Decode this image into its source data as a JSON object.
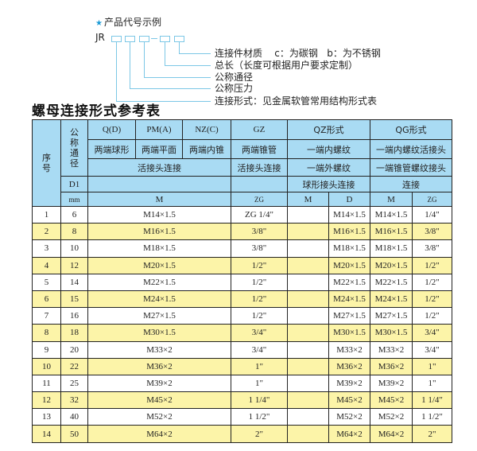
{
  "example": {
    "title": "产品代号示例",
    "star_icon": "star",
    "code_prefix": "JR",
    "dash": "-",
    "labels": [
      "连接件材质    c：为碳钢   b：为不锈钢",
      "总长（长度可根据用户要求定制）",
      "公称通径",
      "公称压力",
      "连接形式：见金属软管常用结构形式表"
    ]
  },
  "table_title": "螺母连接形式参考表",
  "colors": {
    "header_bg": "#a9dbf3",
    "stripe": "#fcf4a8",
    "accent": "#7cc7e6"
  },
  "header": {
    "seq": "序号",
    "dn": "公称通径",
    "qd": "Q(D)",
    "pm": "PM(A)",
    "nz": "NZ(C)",
    "gz": "GZ",
    "qz": "QZ形式",
    "qg": "QG形式",
    "qd_desc": "两端球形",
    "pm_desc": "两端平面",
    "nz_desc": "两端内锥",
    "gz_desc": "两端锥管",
    "qz_desc": "一端内螺纹",
    "qg_desc": "一端内螺纹活接头",
    "conn_a": "活接头连接",
    "conn_gz": "活接头连接",
    "qz_desc2": "一端外螺纹",
    "qg_desc2": "一端锥管螺纹接头",
    "d1": "D1",
    "qz_desc3": "球形接头连接",
    "qg_desc3": "连接",
    "mm": "mm",
    "m": "M",
    "zg": "ZG",
    "qz_m": "M",
    "qz_d": "D",
    "qg_m": "M",
    "qg_zg": "ZG"
  },
  "rows": [
    {
      "no": "1",
      "dn": "6",
      "m": "M14×1.5",
      "zg": "ZG 1/4\"",
      "qz_m": "",
      "qz_d": "M14×1.5",
      "qg_m": "M14×1.5",
      "qg_zg": "1/4\""
    },
    {
      "no": "2",
      "dn": "8",
      "m": "M16×1.5",
      "zg": "3/8\"",
      "qz_m": "",
      "qz_d": "M16×1.5",
      "qg_m": "M16×1.5",
      "qg_zg": "3/8\""
    },
    {
      "no": "3",
      "dn": "10",
      "m": "M18×1.5",
      "zg": "3/8\"",
      "qz_m": "",
      "qz_d": "M18×1.5",
      "qg_m": "M18×1.5",
      "qg_zg": "3/8\""
    },
    {
      "no": "4",
      "dn": "12",
      "m": "M20×1.5",
      "zg": "1/2\"",
      "qz_m": "",
      "qz_d": "M20×1.5",
      "qg_m": "M20×1.5",
      "qg_zg": "1/2\""
    },
    {
      "no": "5",
      "dn": "14",
      "m": "M22×1.5",
      "zg": "1/2\"",
      "qz_m": "",
      "qz_d": "M22×1.5",
      "qg_m": "M22×1.5",
      "qg_zg": "1/2\""
    },
    {
      "no": "6",
      "dn": "15",
      "m": "M24×1.5",
      "zg": "1/2\"",
      "qz_m": "",
      "qz_d": "M24×1.5",
      "qg_m": "M24×1.5",
      "qg_zg": "1/2\""
    },
    {
      "no": "7",
      "dn": "16",
      "m": "M27×1.5",
      "zg": "1/2\"",
      "qz_m": "",
      "qz_d": "M27×1.5",
      "qg_m": "M27×1.5",
      "qg_zg": "1/2\""
    },
    {
      "no": "8",
      "dn": "18",
      "m": "M30×1.5",
      "zg": "3/4\"",
      "qz_m": "",
      "qz_d": "M30×1.5",
      "qg_m": "M30×1.5",
      "qg_zg": "3/4\""
    },
    {
      "no": "9",
      "dn": "20",
      "m": "M33×2",
      "zg": "3/4\"",
      "qz_m": "",
      "qz_d": "M33×2",
      "qg_m": "M33×2",
      "qg_zg": "3/4\""
    },
    {
      "no": "10",
      "dn": "22",
      "m": "M36×2",
      "zg": "1\"",
      "qz_m": "",
      "qz_d": "M36×2",
      "qg_m": "M36×2",
      "qg_zg": "1\""
    },
    {
      "no": "11",
      "dn": "25",
      "m": "M39×2",
      "zg": "1\"",
      "qz_m": "",
      "qz_d": "M39×2",
      "qg_m": "M39×2",
      "qg_zg": "1\""
    },
    {
      "no": "12",
      "dn": "32",
      "m": "M45×2",
      "zg": "1 1/4\"",
      "qz_m": "",
      "qz_d": "M45×2",
      "qg_m": "M45×2",
      "qg_zg": "1 1/4\""
    },
    {
      "no": "13",
      "dn": "40",
      "m": "M52×2",
      "zg": "1 1/2\"",
      "qz_m": "",
      "qz_d": "M52×2",
      "qg_m": "M52×2",
      "qg_zg": "1 1/2\""
    },
    {
      "no": "14",
      "dn": "50",
      "m": "M64×2",
      "zg": "2\"",
      "qz_m": "",
      "qz_d": "M64×2",
      "qg_m": "M64×2",
      "qg_zg": "2\""
    }
  ]
}
